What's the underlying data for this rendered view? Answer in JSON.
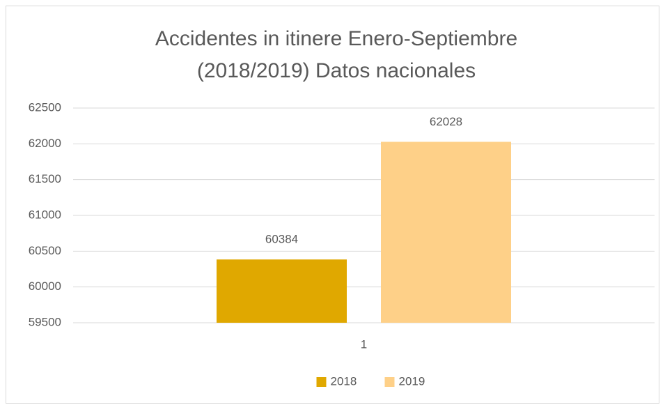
{
  "chart_data": {
    "type": "bar",
    "title": [
      "Accidentes in itinere Enero-Septiembre",
      "(2018/2019) Datos nacionales"
    ],
    "categories": [
      "1"
    ],
    "series": [
      {
        "name": "2018",
        "color": "#e0a800",
        "values": [
          60384
        ]
      },
      {
        "name": "2019",
        "color": "#fed088",
        "values": [
          62028
        ]
      }
    ],
    "ylim": [
      59500,
      62500
    ],
    "yticks": [
      59500,
      60000,
      60500,
      61000,
      61500,
      62000,
      62500
    ],
    "grid": true,
    "legend": "bottom"
  }
}
